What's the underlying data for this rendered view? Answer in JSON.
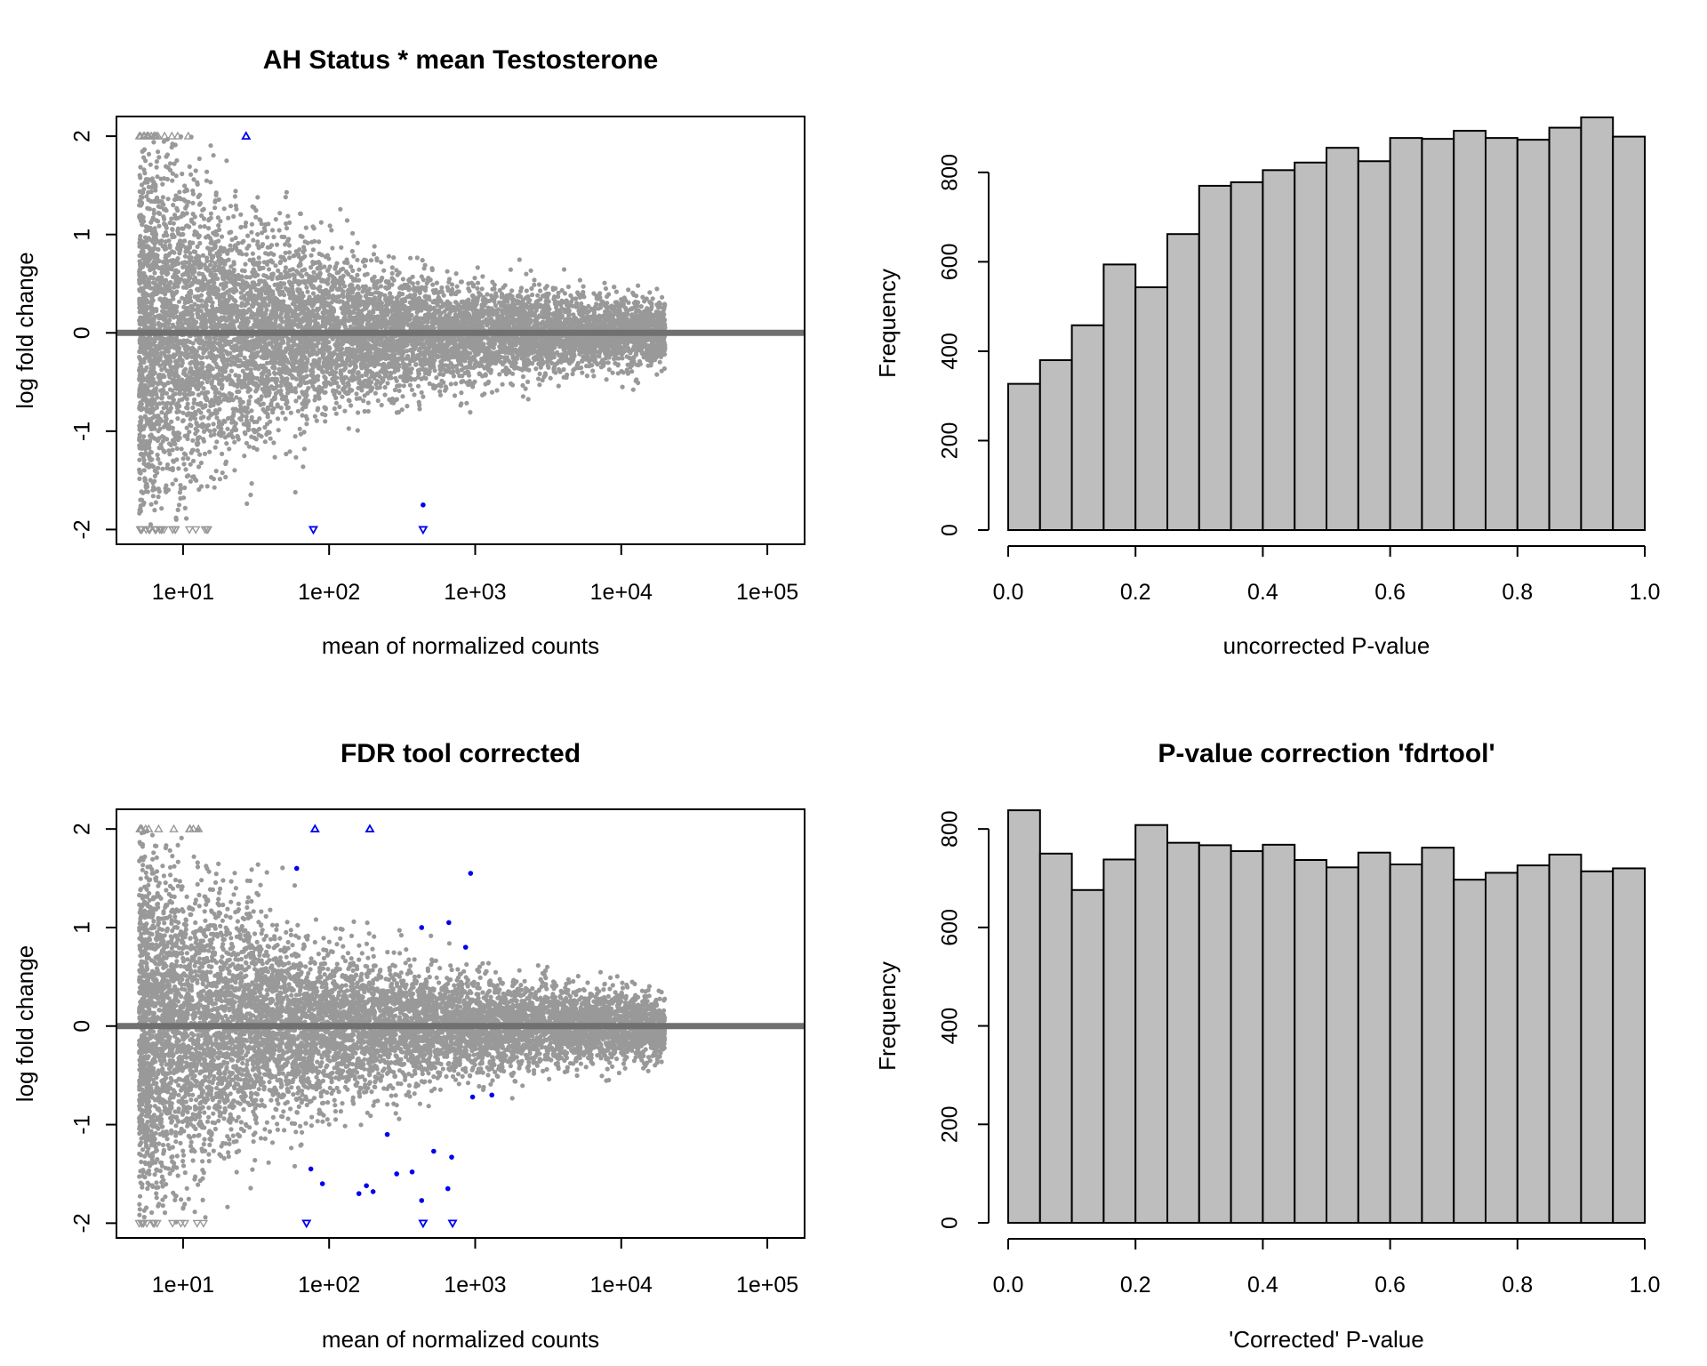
{
  "chart_data": [
    {
      "type": "scatter",
      "title": "AH Status * mean Testosterone",
      "xlabel": "mean of normalized counts",
      "ylabel": "log fold change",
      "x_scale": "log10",
      "xlim": [
        3.5,
        180000
      ],
      "ylim": [
        -2.15,
        2.2
      ],
      "x_ticks": [
        10,
        100,
        1000,
        10000,
        100000
      ],
      "x_tick_labels": [
        "1e+01",
        "1e+02",
        "1e+03",
        "1e+04",
        "1e+05"
      ],
      "y_ticks": [
        -2,
        -1,
        0,
        1,
        2
      ],
      "y_tick_labels": [
        "-2",
        "-1",
        "0",
        "1",
        "2"
      ],
      "reference_line_y": 0,
      "colors": {
        "nonsignificant": "#999999",
        "significant": "#0000ee",
        "reference_line": "#707070"
      },
      "series": [
        {
          "name": "",
          "role": "nonsignificant",
          "approx_points": 16000,
          "x_range": [
            5,
            120000
          ]
        },
        {
          "name": "",
          "role": "significant",
          "points": [
            [
              27,
              2.0
            ],
            [
              440,
              -1.75
            ],
            [
              440,
              -2.0
            ],
            [
              78,
              -2.0
            ]
          ]
        }
      ]
    },
    {
      "type": "bar",
      "title": "",
      "xlabel": "uncorrected P-value",
      "ylabel": "Frequency",
      "xlim": [
        0,
        1
      ],
      "ylim": [
        0,
        925
      ],
      "x_ticks": [
        0.0,
        0.2,
        0.4,
        0.6,
        0.8,
        1.0
      ],
      "x_tick_labels": [
        "0.0",
        "0.2",
        "0.4",
        "0.6",
        "0.8",
        "1.0"
      ],
      "y_ticks": [
        0,
        200,
        400,
        600,
        800
      ],
      "y_tick_labels": [
        "0",
        "200",
        "400",
        "600",
        "800"
      ],
      "bin_width": 0.05,
      "bin_starts": [
        0.0,
        0.05,
        0.1,
        0.15,
        0.2,
        0.25,
        0.3,
        0.35,
        0.4,
        0.45,
        0.5,
        0.55,
        0.6,
        0.65,
        0.7,
        0.75,
        0.8,
        0.85,
        0.9,
        0.95
      ],
      "values": [
        327,
        380,
        458,
        594,
        543,
        662,
        770,
        778,
        805,
        822,
        855,
        825,
        877,
        875,
        893,
        877,
        873,
        900,
        923,
        880
      ],
      "colors": {
        "bar": "#bebebe"
      }
    },
    {
      "type": "scatter",
      "title": "FDR tool corrected",
      "xlabel": "mean of normalized counts",
      "ylabel": "log fold change",
      "x_scale": "log10",
      "xlim": [
        3.5,
        180000
      ],
      "ylim": [
        -2.15,
        2.2
      ],
      "x_ticks": [
        10,
        100,
        1000,
        10000,
        100000
      ],
      "x_tick_labels": [
        "1e+01",
        "1e+02",
        "1e+03",
        "1e+04",
        "1e+05"
      ],
      "y_ticks": [
        -2,
        -1,
        0,
        1,
        2
      ],
      "y_tick_labels": [
        "-2",
        "-1",
        "0",
        "1",
        "2"
      ],
      "reference_line_y": 0,
      "colors": {
        "nonsignificant": "#999999",
        "significant": "#0000ee",
        "reference_line": "#707070"
      },
      "series": [
        {
          "name": "",
          "role": "nonsignificant",
          "approx_points": 16000,
          "x_range": [
            5,
            120000
          ]
        },
        {
          "name": "",
          "role": "significant",
          "points": [
            [
              60,
              1.6
            ],
            [
              930,
              1.55
            ],
            [
              430,
              1.0
            ],
            [
              660,
              1.05
            ],
            [
              860,
              0.8
            ],
            [
              960,
              -0.72
            ],
            [
              1300,
              -0.7
            ],
            [
              250,
              -1.1
            ],
            [
              520,
              -1.27
            ],
            [
              690,
              -1.33
            ],
            [
              75,
              -1.45
            ],
            [
              290,
              -1.5
            ],
            [
              370,
              -1.48
            ],
            [
              90,
              -1.6
            ],
            [
              180,
              -1.62
            ],
            [
              650,
              -1.65
            ],
            [
              160,
              -1.7
            ],
            [
              200,
              -1.68
            ],
            [
              430,
              -1.77
            ],
            [
              70,
              -2.0
            ],
            [
              190,
              2.0
            ],
            [
              80,
              2.0
            ],
            [
              440,
              -2.0
            ],
            [
              700,
              -2.0
            ]
          ]
        }
      ]
    },
    {
      "type": "bar",
      "title": "P-value correction 'fdrtool'",
      "xlabel": "'Corrected' P-value",
      "ylabel": "Frequency",
      "xlim": [
        0,
        1
      ],
      "ylim": [
        0,
        840
      ],
      "x_ticks": [
        0.0,
        0.2,
        0.4,
        0.6,
        0.8,
        1.0
      ],
      "x_tick_labels": [
        "0.0",
        "0.2",
        "0.4",
        "0.6",
        "0.8",
        "1.0"
      ],
      "y_ticks": [
        0,
        200,
        400,
        600,
        800
      ],
      "y_tick_labels": [
        "0",
        "200",
        "400",
        "600",
        "800"
      ],
      "bin_width": 0.05,
      "bin_starts": [
        0.0,
        0.05,
        0.1,
        0.15,
        0.2,
        0.25,
        0.3,
        0.35,
        0.4,
        0.45,
        0.5,
        0.55,
        0.6,
        0.65,
        0.7,
        0.75,
        0.8,
        0.85,
        0.9,
        0.95
      ],
      "values": [
        838,
        750,
        676,
        738,
        808,
        772,
        767,
        755,
        768,
        737,
        722,
        752,
        728,
        762,
        697,
        711,
        726,
        748,
        714,
        720
      ],
      "colors": {
        "bar": "#bebebe"
      }
    }
  ]
}
